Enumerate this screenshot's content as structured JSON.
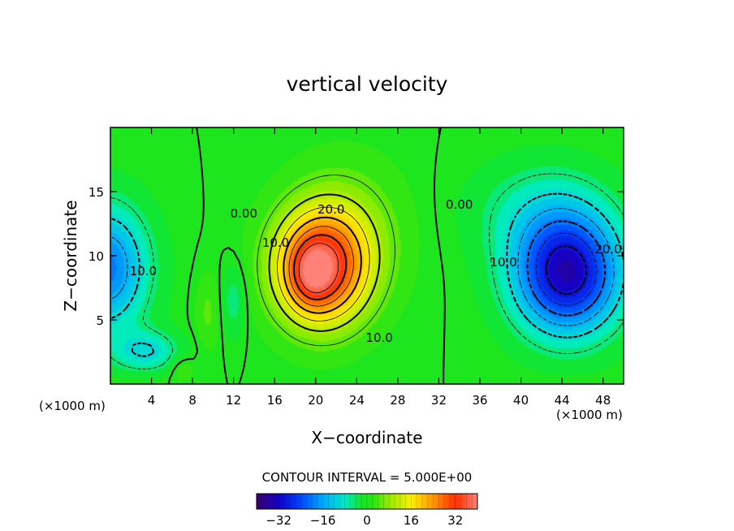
{
  "chart_data": {
    "type": "heatmap",
    "title": "vertical velocity",
    "xlabel": "X−coordinate",
    "ylabel": "Z−coordinate",
    "x_unit_left": "(×1000 m)",
    "x_unit_right": "(×1000 m)",
    "xlim": [
      0,
      50
    ],
    "ylim": [
      0,
      20
    ],
    "xticks": [
      4,
      8,
      12,
      16,
      20,
      24,
      28,
      32,
      36,
      40,
      44,
      48
    ],
    "yticks": [
      5,
      10,
      15
    ],
    "xtick_labels": [
      "4",
      "8",
      "12",
      "16",
      "20",
      "24",
      "28",
      "32",
      "36",
      "40",
      "44",
      "48"
    ],
    "ytick_labels": [
      "5",
      "10",
      "15"
    ],
    "contour_interval_text": "CONTOUR INTERVAL = 5.000E+00",
    "contour_interval": 5,
    "colorbar": {
      "range": [
        -40,
        40
      ],
      "ticks": [
        -32,
        -16,
        0,
        16,
        32
      ],
      "tick_labels": [
        "−32",
        "−16",
        "0",
        "16",
        "32"
      ]
    },
    "contour_labels": [
      {
        "text": "20.0",
        "x": 21.5,
        "z": 13.6
      },
      {
        "text": "10.0",
        "x": 16.1,
        "z": 11.0
      },
      {
        "text": "10.0",
        "x": 26.2,
        "z": 3.6
      },
      {
        "text": "0.00",
        "x": 13.0,
        "z": 13.3
      },
      {
        "text": "0.00",
        "x": 34.0,
        "z": 14.0
      },
      {
        "text": "10.0",
        "x": 38.3,
        "z": 9.5
      },
      {
        "text": "20.0",
        "x": 48.5,
        "z": 10.5
      },
      {
        "text": "10.0",
        "x": 3.2,
        "z": 8.8
      }
    ],
    "features": [
      {
        "name": "updraft maximum",
        "x": 20,
        "z": 9,
        "w": 38
      },
      {
        "name": "downdraft minimum",
        "x": 44.5,
        "z": 8.5,
        "w": -30
      },
      {
        "name": "left downdraft",
        "x": 0,
        "z": 9,
        "w": -17
      }
    ]
  }
}
